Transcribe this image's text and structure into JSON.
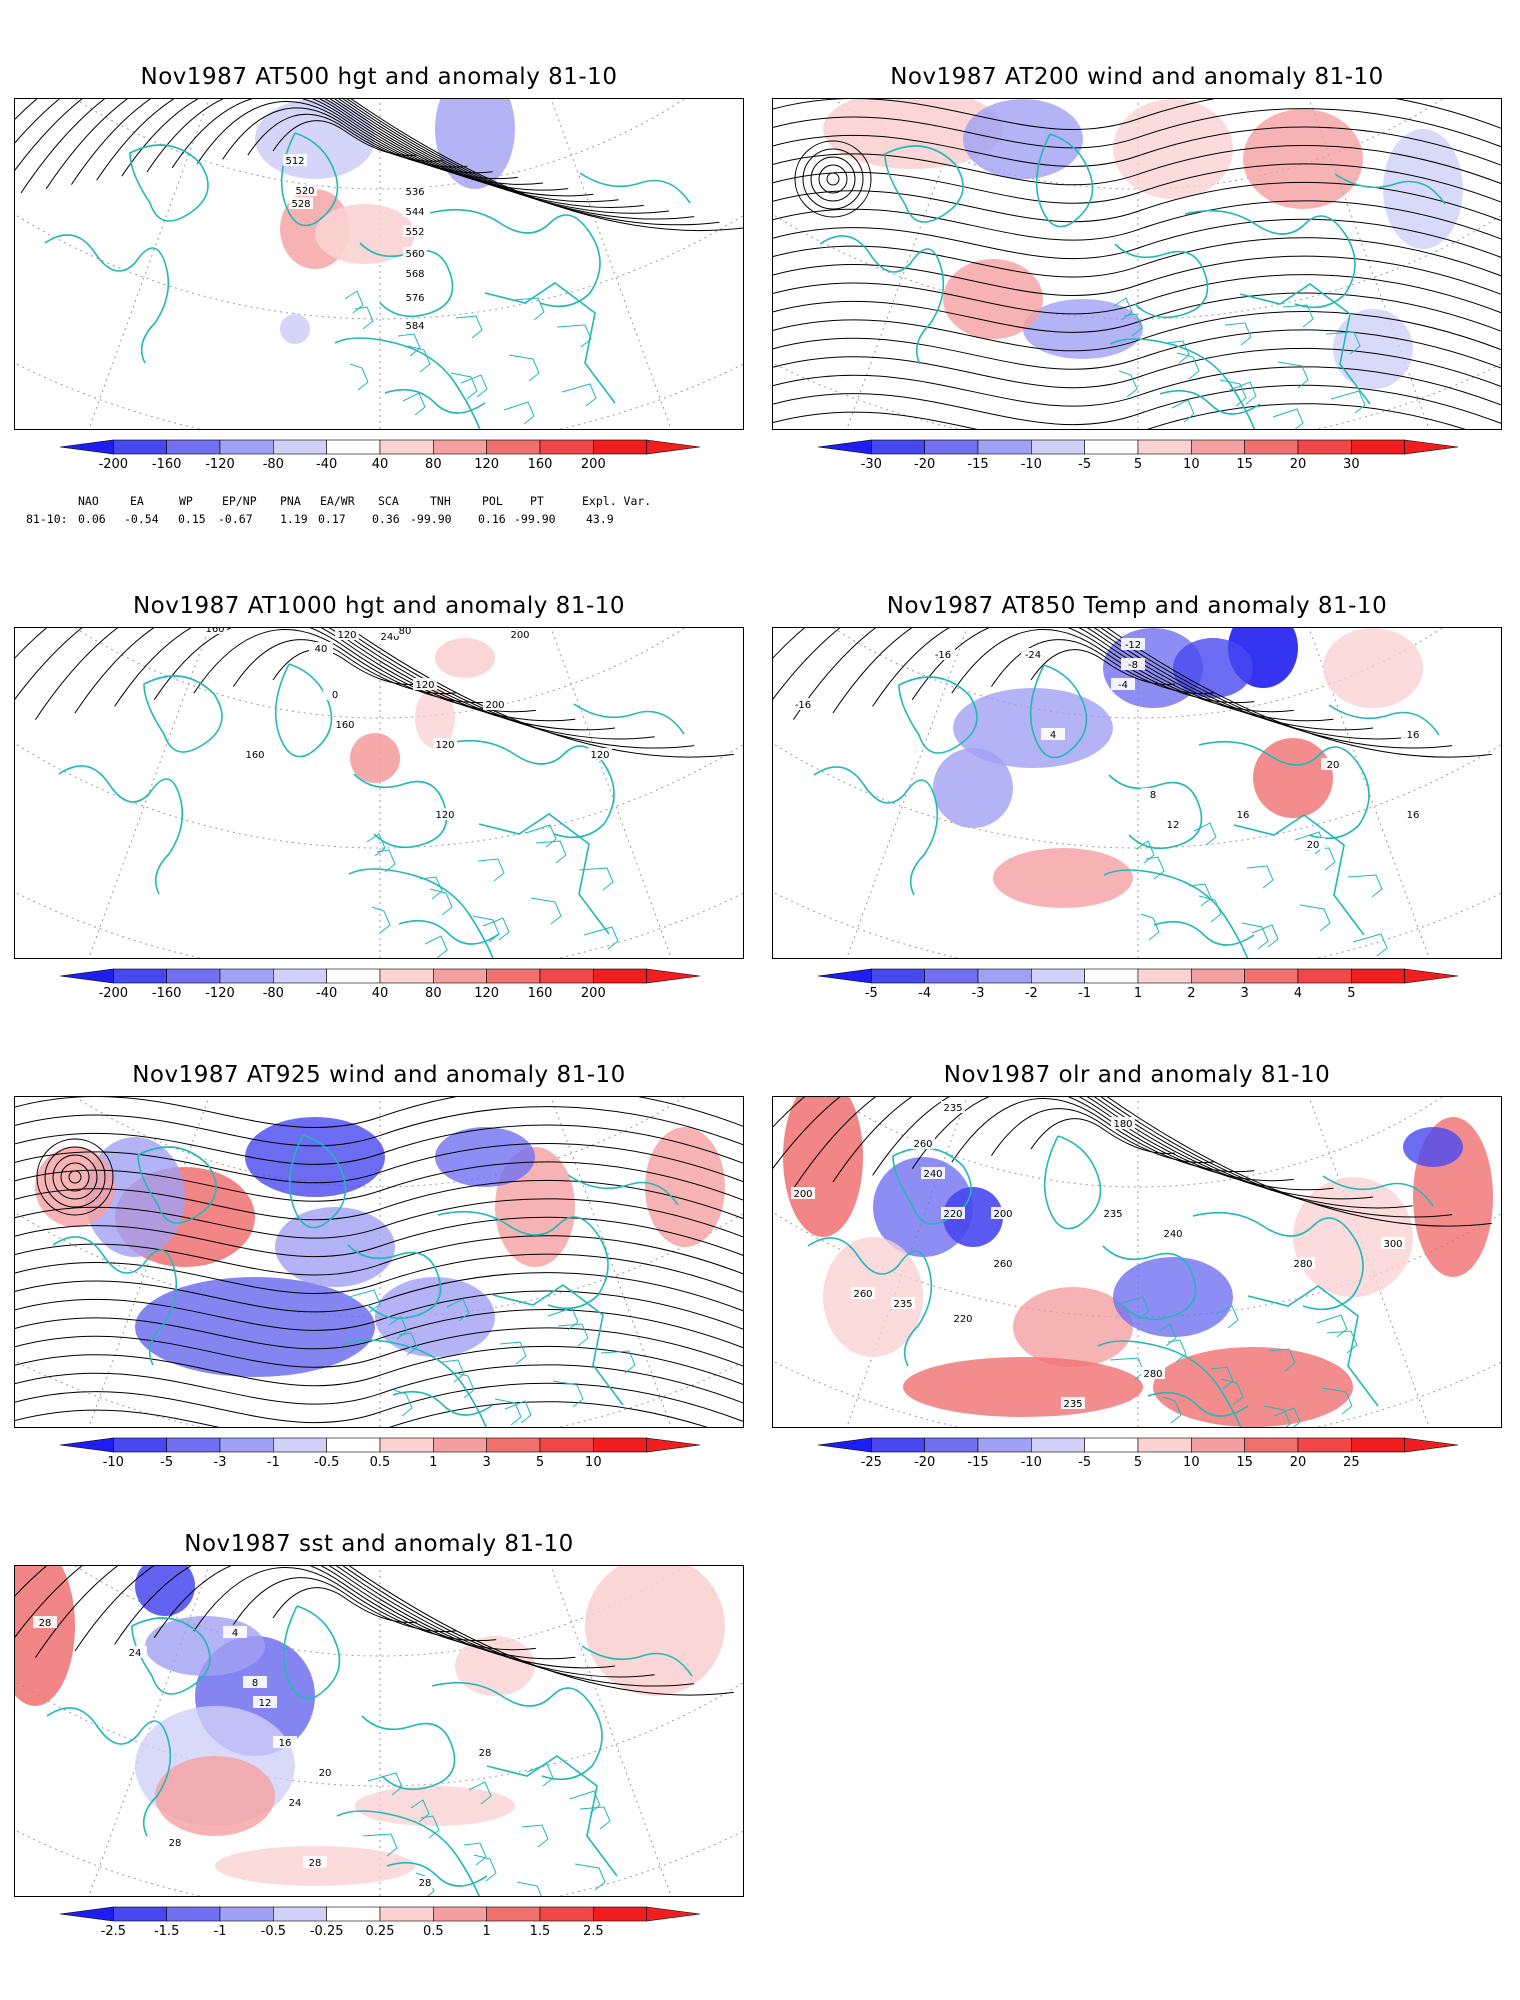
{
  "panels": [
    {
      "id": "p500",
      "title": "Nov1987 AT500 hgt and anomaly 81-10",
      "ticks": [
        "-200",
        "-160",
        "-120",
        "-80",
        "-40",
        "40",
        "80",
        "120",
        "160",
        "200"
      ],
      "contour_labels": [
        "512",
        "520",
        "528",
        "536",
        "544",
        "552",
        "560",
        "568",
        "576",
        "584"
      ]
    },
    {
      "id": "p200",
      "title": "Nov1987 AT200 wind and anomaly 81-10",
      "ticks": [
        "-30",
        "-20",
        "-15",
        "-10",
        "-5",
        "5",
        "10",
        "15",
        "20",
        "30"
      ],
      "contour_labels": []
    },
    {
      "id": "p1000",
      "title": "Nov1987 AT1000 hgt and anomaly 81-10",
      "ticks": [
        "-200",
        "-160",
        "-120",
        "-80",
        "-40",
        "40",
        "80",
        "120",
        "160",
        "200"
      ],
      "contour_labels": [
        "160",
        "120",
        "40",
        "0",
        "120",
        "200",
        "240",
        "160",
        "200",
        "120",
        "160",
        "120",
        "120",
        "80"
      ]
    },
    {
      "id": "p850",
      "title": "Nov1987 AT850 Temp and anomaly 81-10",
      "ticks": [
        "-5",
        "-4",
        "-3",
        "-2",
        "-1",
        "1",
        "2",
        "3",
        "4",
        "5"
      ],
      "contour_labels": [
        "-16",
        "-24",
        "-12",
        "-8",
        "-4",
        "4",
        "8",
        "12",
        "16",
        "20",
        "16",
        "20",
        "16",
        "-16"
      ]
    },
    {
      "id": "p925",
      "title": "Nov1987 AT925 wind and anomaly 81-10",
      "ticks": [
        "-10",
        "-5",
        "-3",
        "-1",
        "-0.5",
        "0.5",
        "1",
        "3",
        "5",
        "10"
      ],
      "contour_labels": []
    },
    {
      "id": "polr",
      "title": "Nov1987 olr and anomaly 81-10",
      "ticks": [
        "-25",
        "-20",
        "-15",
        "-10",
        "-5",
        "5",
        "10",
        "15",
        "20",
        "25"
      ],
      "contour_labels": [
        "235",
        "180",
        "260",
        "240",
        "220",
        "200",
        "235",
        "240",
        "260",
        "280",
        "300",
        "220",
        "235",
        "260",
        "280",
        "235",
        "200"
      ]
    },
    {
      "id": "psst",
      "title": "Nov1987 sst and anomaly 81-10",
      "ticks": [
        "-2.5",
        "-1.5",
        "-1",
        "-0.5",
        "-0.25",
        "0.25",
        "0.5",
        "1",
        "1.5",
        "2.5"
      ],
      "contour_labels": [
        "28",
        "24",
        "4",
        "8",
        "12",
        "16",
        "20",
        "24",
        "28",
        "28",
        "28",
        "28"
      ]
    }
  ],
  "colorbar_colors": [
    "#1e1ef0",
    "#4848f0",
    "#7070f0",
    "#a0a0f4",
    "#d0d0f8",
    "#ffffff",
    "#fad2d2",
    "#f5a0a0",
    "#f07070",
    "#f04848",
    "#f01e1e"
  ],
  "index_table": {
    "headers": [
      "NAO",
      "EA",
      "WP",
      "EP/NP",
      "PNA",
      "EA/WR",
      "SCA",
      "TNH",
      "POL",
      "PT",
      "Expl. Var."
    ],
    "row_label": "81-10:",
    "values": [
      "0.06",
      "-0.54",
      "0.15",
      "-0.67",
      "1.19",
      "0.17",
      "0.36",
      "-99.90",
      "0.16",
      "-99.90",
      "43.9"
    ]
  },
  "colors": {
    "coast": "#22b8b8",
    "contour": "#000000",
    "grid": "#9a9a9a"
  }
}
